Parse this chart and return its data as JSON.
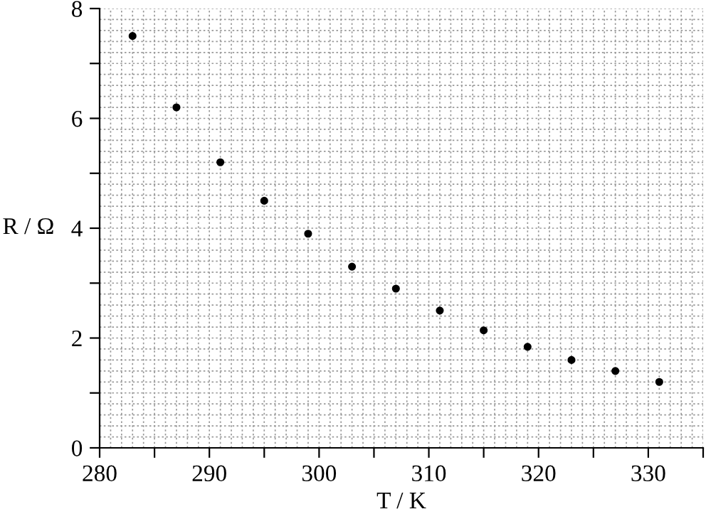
{
  "chart_data": {
    "type": "scatter",
    "xlabel": "T / K",
    "ylabel": "R / Ω",
    "x": [
      283,
      287,
      291,
      295,
      299,
      303,
      307,
      311,
      315,
      319,
      323,
      327,
      331
    ],
    "values": [
      7.5,
      6.2,
      5.2,
      4.5,
      3.9,
      3.3,
      2.9,
      2.5,
      2.14,
      1.84,
      1.6,
      1.4,
      1.2
    ],
    "color": "#000000",
    "marker": "circle",
    "grid": true,
    "xlim": [
      280,
      335
    ],
    "xticks": [
      280,
      {
        "value": 285,
        "label": null
      },
      290,
      {
        "value": 295,
        "label": null
      },
      300,
      {
        "value": 305,
        "label": null
      },
      310,
      {
        "value": 315,
        "label": null
      },
      320,
      {
        "value": 325,
        "label": null
      },
      330,
      {
        "value": 335,
        "label": null
      }
    ],
    "ylim": [
      0,
      8
    ],
    "yticks": [
      0,
      {
        "value": 1,
        "label": null
      },
      2,
      {
        "value": 3,
        "label": null
      },
      4,
      {
        "value": 5,
        "label": null
      },
      6,
      {
        "value": 7,
        "label": null
      },
      8
    ]
  }
}
